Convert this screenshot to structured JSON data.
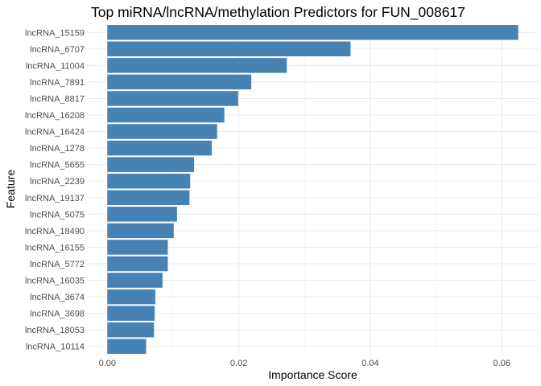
{
  "chart_data": {
    "type": "bar",
    "orientation": "horizontal",
    "title": "Top miRNA/lncRNA/methylation Predictors for FUN_008617",
    "xlabel": "Importance Score",
    "ylabel": "Feature",
    "categories": [
      "lncRNA_15159",
      "lncRNA_6707",
      "lncRNA_11004",
      "lncRNA_7891",
      "lncRNA_8817",
      "lncRNA_16208",
      "lncRNA_16424",
      "lncRNA_1278",
      "lncRNA_5655",
      "lncRNA_2239",
      "lncRNA_19137",
      "lncRNA_5075",
      "lncRNA_18490",
      "lncRNA_16155",
      "lncRNA_5772",
      "lncRNA_16035",
      "lncRNA_3674",
      "lncRNA_3698",
      "lncRNA_18053",
      "lncRNA_10114"
    ],
    "values": [
      0.0625,
      0.037,
      0.0273,
      0.0219,
      0.0199,
      0.0178,
      0.0167,
      0.0159,
      0.0132,
      0.0126,
      0.0125,
      0.0106,
      0.0101,
      0.0092,
      0.0092,
      0.0084,
      0.0073,
      0.0072,
      0.0071,
      0.0059
    ],
    "xlim": [
      -0.0031,
      0.0656
    ],
    "xticks": [
      0.0,
      0.02,
      0.04,
      0.06
    ],
    "xtick_labels": [
      "0.00",
      "0.02",
      "0.04",
      "0.06"
    ],
    "grid": true,
    "legend": "none",
    "bar_color": "#4682b4"
  }
}
